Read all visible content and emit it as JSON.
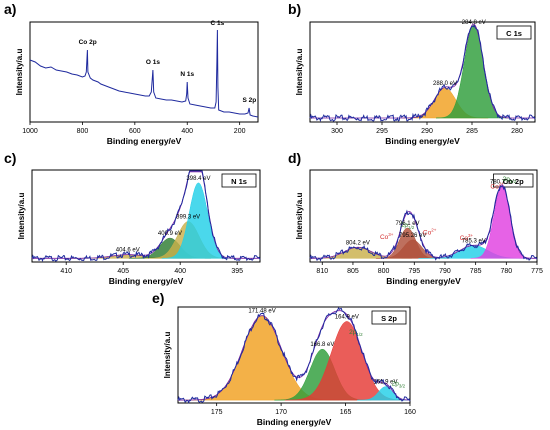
{
  "figure": {
    "panels": [
      "a",
      "b",
      "c",
      "d",
      "e"
    ]
  },
  "colors": {
    "line": "#1f2a9e",
    "axis": "#000000",
    "c1s_main": "#2e9e3a",
    "c1s_minor": "#f0a020",
    "n1s_main": "#22cfe8",
    "n1s_mid": "#c9b04a",
    "n1s_minor": "#2e7d32",
    "co_main": "#e040e0",
    "co_peak796": "#b0503a",
    "co_peak804": "#c9b04a",
    "co_peak783": "#22cfe8",
    "s_main": "#f0a020",
    "s_red": "#e53935",
    "s_green": "#2e9e3a",
    "s_small": "#22cfe8",
    "sat_red": "#d32f2f",
    "sat_green": "#2e7d32"
  },
  "chart_data": [
    {
      "panel": "a)",
      "type": "line",
      "xlabel": "Binding energy/eV",
      "ylabel": "Intensity/a.u",
      "xlim": [
        1000,
        130
      ],
      "xticks": [
        1000,
        800,
        600,
        400,
        200
      ],
      "grid": false,
      "spectrum": [
        [
          1000,
          0.62
        ],
        [
          980,
          0.6
        ],
        [
          960,
          0.56
        ],
        [
          940,
          0.54
        ],
        [
          920,
          0.55
        ],
        [
          900,
          0.52
        ],
        [
          880,
          0.51
        ],
        [
          860,
          0.5
        ],
        [
          840,
          0.48
        ],
        [
          820,
          0.47
        ],
        [
          800,
          0.45
        ],
        [
          790,
          0.46
        ],
        [
          785,
          0.5
        ],
        [
          781,
          0.72
        ],
        [
          779,
          0.5
        ],
        [
          770,
          0.44
        ],
        [
          760,
          0.42
        ],
        [
          750,
          0.41
        ],
        [
          740,
          0.4
        ],
        [
          730,
          0.38
        ],
        [
          720,
          0.37
        ],
        [
          700,
          0.35
        ],
        [
          680,
          0.33
        ],
        [
          660,
          0.31
        ],
        [
          640,
          0.3
        ],
        [
          620,
          0.29
        ],
        [
          600,
          0.28
        ],
        [
          580,
          0.27
        ],
        [
          560,
          0.26
        ],
        [
          545,
          0.26
        ],
        [
          537,
          0.3
        ],
        [
          533,
          0.45
        ],
        [
          531,
          0.52
        ],
        [
          528,
          0.3
        ],
        [
          520,
          0.24
        ],
        [
          500,
          0.23
        ],
        [
          480,
          0.22
        ],
        [
          460,
          0.22
        ],
        [
          440,
          0.21
        ],
        [
          420,
          0.2
        ],
        [
          406,
          0.21
        ],
        [
          402,
          0.28
        ],
        [
          400,
          0.4
        ],
        [
          397,
          0.24
        ],
        [
          390,
          0.18
        ],
        [
          370,
          0.17
        ],
        [
          350,
          0.16
        ],
        [
          330,
          0.15
        ],
        [
          310,
          0.14
        ],
        [
          295,
          0.14
        ],
        [
          290,
          0.2
        ],
        [
          287,
          0.6
        ],
        [
          285,
          0.92
        ],
        [
          283,
          0.35
        ],
        [
          280,
          0.12
        ],
        [
          260,
          0.1
        ],
        [
          240,
          0.1
        ],
        [
          220,
          0.09
        ],
        [
          200,
          0.08
        ],
        [
          180,
          0.08
        ],
        [
          168,
          0.09
        ],
        [
          164,
          0.14
        ],
        [
          160,
          0.07
        ],
        [
          150,
          0.06
        ],
        [
          130,
          0.05
        ]
      ],
      "annotations": [
        {
          "x": 780,
          "y": 0.78,
          "text": "Co 2p"
        },
        {
          "x": 531,
          "y": 0.58,
          "text": "O 1s"
        },
        {
          "x": 400,
          "y": 0.46,
          "text": "N 1s"
        },
        {
          "x": 285,
          "y": 0.97,
          "text": "C 1s"
        },
        {
          "x": 163,
          "y": 0.2,
          "text": "S 2p"
        }
      ]
    },
    {
      "panel": "b)",
      "type": "area",
      "title_box": "C 1s",
      "xlabel": "Binding energy/eV",
      "ylabel": "Intensity/a.u",
      "xlim": [
        303,
        278
      ],
      "xticks": [
        300,
        295,
        290,
        285,
        280
      ],
      "grid": false,
      "peaks": [
        {
          "center": 288.0,
          "height": 0.3,
          "width": 1.2,
          "color_key": "c1s_minor",
          "label": "288.0 eV"
        },
        {
          "center": 284.8,
          "height": 0.93,
          "width": 1.05,
          "color_key": "c1s_main",
          "label": "284.8 eV"
        }
      ],
      "baseline": 0.04
    },
    {
      "panel": "c)",
      "type": "area",
      "title_box": "N 1s",
      "xlabel": "Binding energy/eV",
      "ylabel": "Intensity/a.u",
      "xlim": [
        413,
        393
      ],
      "xticks": [
        410,
        405,
        400,
        395
      ],
      "grid": false,
      "peaks": [
        {
          "center": 404.6,
          "height": 0.04,
          "width": 1.4,
          "color_key": "n1s_mid",
          "label": "404.6 eV"
        },
        {
          "center": 400.9,
          "height": 0.22,
          "width": 0.9,
          "color_key": "n1s_minor",
          "label": "400.9 eV"
        },
        {
          "center": 399.3,
          "height": 0.4,
          "width": 0.95,
          "color_key": "n1s_mid",
          "label": "399.3 eV"
        },
        {
          "center": 398.4,
          "height": 0.82,
          "width": 0.8,
          "color_key": "n1s_main",
          "label": "398.4 eV"
        }
      ],
      "baseline": 0.04
    },
    {
      "panel": "d)",
      "type": "area",
      "title_box": "Co 2p",
      "xlabel": "Binding energy/eV",
      "ylabel": "Intensity/a.u",
      "xlim": [
        812,
        775
      ],
      "xticks": [
        810,
        805,
        800,
        795,
        790,
        785,
        780,
        775
      ],
      "grid": false,
      "peaks": [
        {
          "center": 804.2,
          "height": 0.12,
          "width": 2.2,
          "color_key": "co_peak804",
          "label": "804.2 eV"
        },
        {
          "center": 796.1,
          "height": 0.33,
          "width": 1.3,
          "color_key": "co_peak796",
          "label": "796.1 eV"
        },
        {
          "center": 795.26,
          "height": 0.2,
          "width": 1.5,
          "color_key": "co_peak796",
          "label": "795.26 eV"
        },
        {
          "center": 785.3,
          "height": 0.14,
          "width": 2.3,
          "color_key": "co_peak783",
          "label": "785.3 eV"
        },
        {
          "center": 780.7,
          "height": 0.78,
          "width": 1.3,
          "color_key": "co_main",
          "label": "780.7 eV"
        }
      ],
      "baseline": 0.04,
      "annotations": [
        {
          "x": 799.5,
          "y": 0.25,
          "text": "Co",
          "sup": "3+",
          "color_key": "sat_red"
        },
        {
          "x": 796.1,
          "y": 0.38,
          "text": "2p",
          "sub": "1/2",
          "color_key": "sat_green"
        },
        {
          "x": 792.5,
          "y": 0.3,
          "text": "Co",
          "sup": "2+",
          "color_key": "sat_red"
        },
        {
          "x": 786.5,
          "y": 0.24,
          "text": "Co",
          "sup": "3+",
          "color_key": "sat_red"
        },
        {
          "x": 781.5,
          "y": 0.8,
          "text": "Co",
          "sup": "2+",
          "color_key": "sat_red"
        },
        {
          "x": 779.5,
          "y": 0.88,
          "text": "2p",
          "sub": "3/2",
          "color_key": "sat_green"
        }
      ]
    },
    {
      "panel": "e)",
      "type": "area",
      "title_box": "S 2p",
      "xlabel": "Binding energy/eV",
      "ylabel": "Intensity/a.u",
      "xlim": [
        178,
        160
      ],
      "xticks": [
        175,
        170,
        165,
        160
      ],
      "grid": false,
      "peaks": [
        {
          "center": 171.48,
          "height": 0.88,
          "width": 1.5,
          "color_key": "s_main",
          "label": "171.48 eV"
        },
        {
          "center": 166.8,
          "height": 0.53,
          "width": 0.95,
          "color_key": "s_green",
          "label": "166.8 eV"
        },
        {
          "center": 164.9,
          "height": 0.82,
          "width": 1.2,
          "color_key": "s_red",
          "label": "164.9 eV"
        },
        {
          "center": 161.9,
          "height": 0.14,
          "width": 0.55,
          "color_key": "s_small",
          "label": "161.9 eV"
        }
      ],
      "baseline": 0.03,
      "annotations": [
        {
          "x": 164.2,
          "y": 0.72,
          "text": "2p",
          "sub": "1/2",
          "color_key": "sat_green"
        },
        {
          "x": 160.9,
          "y": 0.18,
          "text": "2p",
          "sub": "3/2",
          "color_key": "sat_green"
        }
      ]
    }
  ]
}
